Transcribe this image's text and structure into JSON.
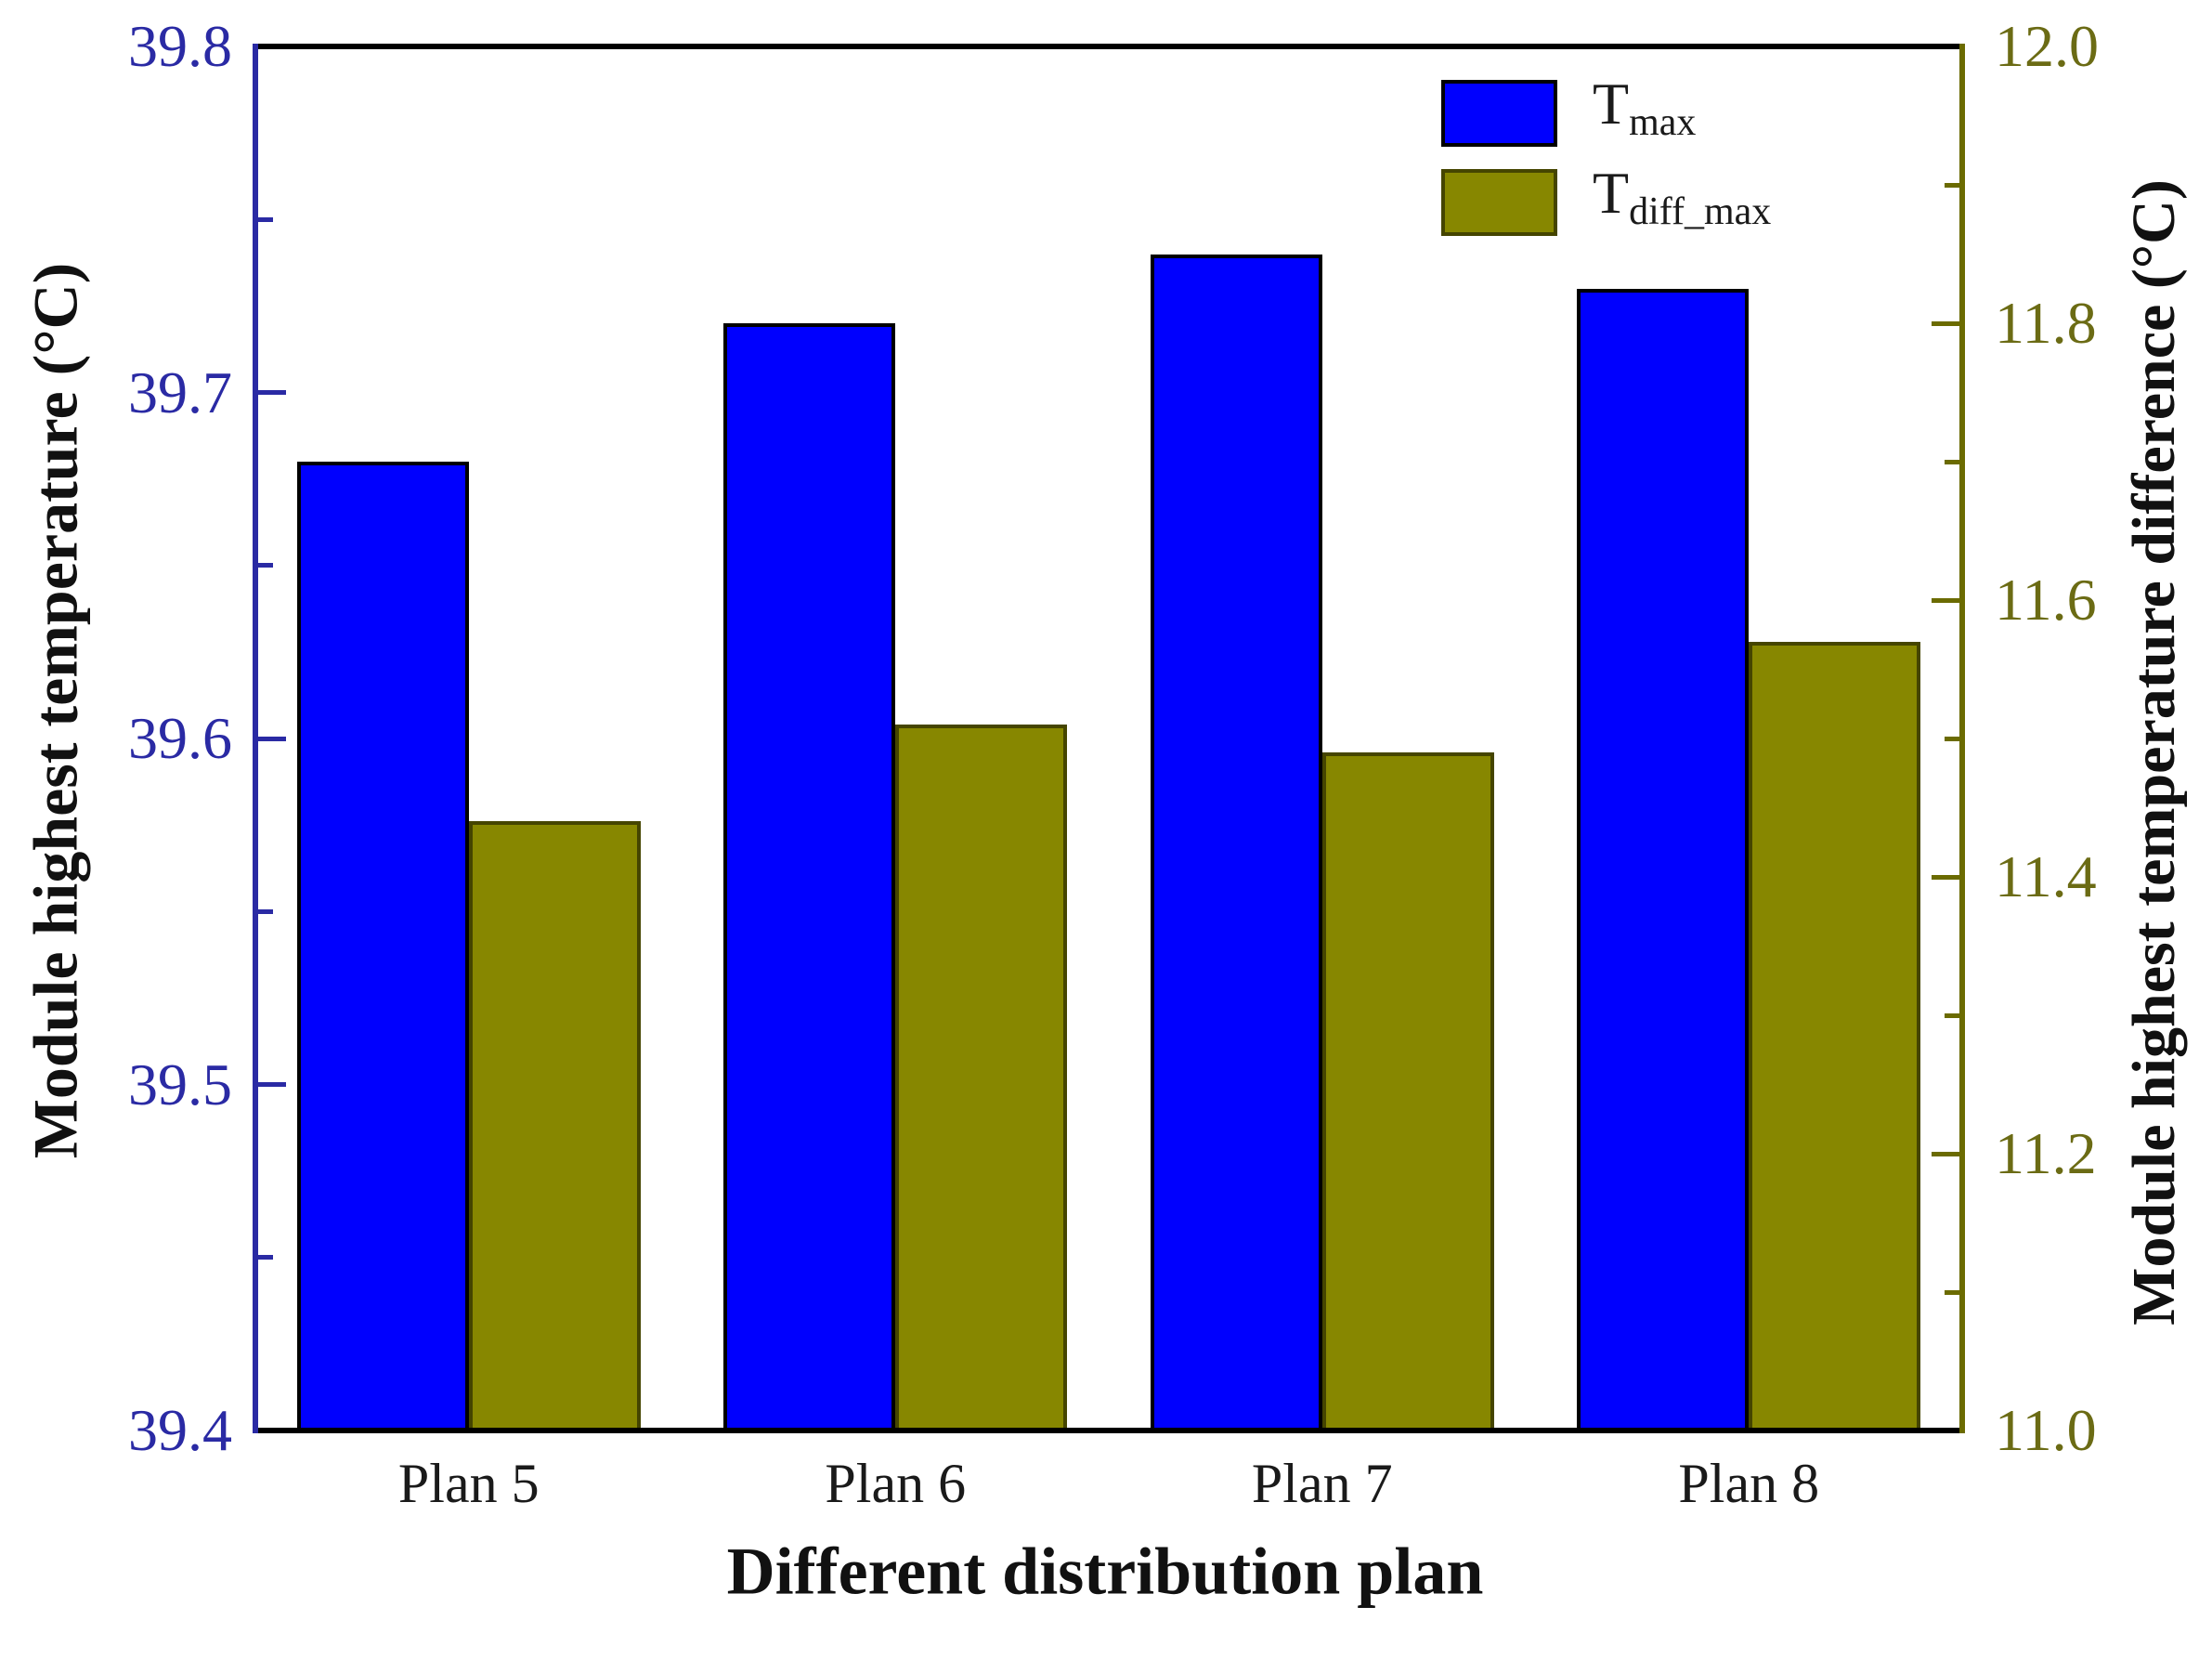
{
  "colors": {
    "background": "#ffffff",
    "frame": "#000000",
    "left_axis": "#2A2AA4",
    "left_tick_text": "#2A2AA4",
    "right_axis": "#6B6B00",
    "right_tick_text": "#6B6B14",
    "black_text": "#1a1a1a"
  },
  "left_axis": {
    "major_ticks": [
      39.8,
      39.7,
      39.6,
      39.5,
      39.4
    ],
    "minor_ticks": [
      39.75,
      39.65,
      39.55,
      39.45
    ],
    "decimals": 1
  },
  "right_axis": {
    "major_ticks": [
      12.0,
      11.8,
      11.6,
      11.4,
      11.2,
      11.0
    ],
    "minor_ticks": [
      11.9,
      11.7,
      11.5,
      11.3,
      11.1
    ],
    "decimals": 1
  },
  "legend": {
    "items": [
      {
        "main": "T",
        "sub": "max"
      },
      {
        "main": "T",
        "sub": "diff_max"
      }
    ]
  },
  "chart_data": {
    "type": "bar",
    "categories": [
      "Plan 5",
      "Plan 6",
      "Plan 7",
      "Plan 8"
    ],
    "series": [
      {
        "name": "T_max",
        "axis": "left",
        "color": "#0000FE",
        "border_color": "#000000",
        "values": [
          39.68,
          39.72,
          39.74,
          39.73
        ]
      },
      {
        "name": "T_diff_max",
        "axis": "right",
        "color": "#878700",
        "border_color": "#454500",
        "values": [
          11.44,
          11.51,
          11.49,
          11.57
        ]
      }
    ],
    "title": "",
    "xlabel": "Different distribution plan",
    "ylabel_left": "Module highest temperature (°C)",
    "ylabel_right": "Module highest temperature difference (°C)",
    "ylim_left": [
      39.4,
      39.8
    ],
    "ylim_right": [
      11.0,
      12.0
    ],
    "grid": false,
    "legend_position": "top-right-inside"
  }
}
